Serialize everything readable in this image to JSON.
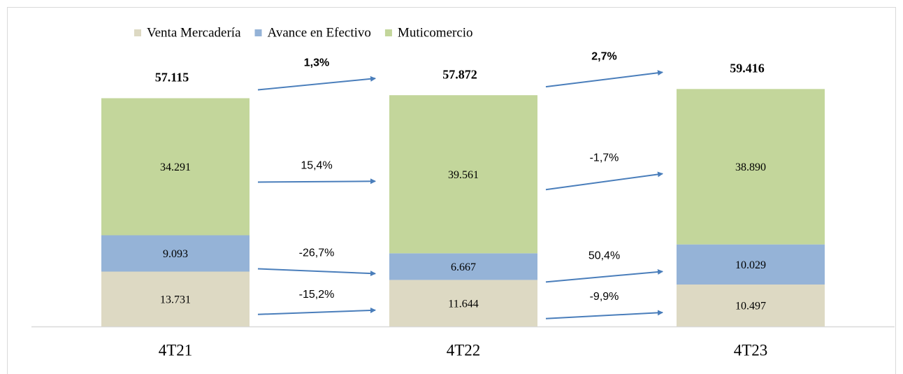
{
  "chart_data": {
    "type": "stacked_bar",
    "categories": [
      "4T21",
      "4T22",
      "4T23"
    ],
    "series": [
      {
        "name": "Venta Mercadería",
        "color": "#ddd9c3",
        "values": [
          13731,
          11644,
          10497
        ],
        "value_labels": [
          "13.731",
          "11.644",
          "10.497"
        ],
        "growth": [
          -15.2,
          -9.9
        ],
        "growth_labels": [
          "-15,2%",
          "-9,9%"
        ]
      },
      {
        "name": "Avance en Efectivo",
        "color": "#95b3d7",
        "values": [
          9093,
          6667,
          10029
        ],
        "value_labels": [
          "9.093",
          "6.667",
          "10.029"
        ],
        "growth": [
          -26.7,
          50.4
        ],
        "growth_labels": [
          "-26,7%",
          "50,4%"
        ]
      },
      {
        "name": "Muticomercio",
        "color": "#c3d69b",
        "values": [
          34291,
          39561,
          38890
        ],
        "value_labels": [
          "34.291",
          "39.561",
          "38.890"
        ],
        "growth": [
          15.4,
          -1.7
        ],
        "growth_labels": [
          "15,4%",
          "-1,7%"
        ]
      }
    ],
    "totals": {
      "values": [
        57115,
        57872,
        59416
      ],
      "value_labels": [
        "57.115",
        "57.872",
        "59.416"
      ],
      "growth": [
        1.3,
        2.7
      ],
      "growth_labels": [
        "1,3%",
        "2,7%"
      ]
    },
    "ylim": [
      0,
      60000
    ],
    "arrow_color": "#4a7ebb",
    "legend": "top"
  }
}
